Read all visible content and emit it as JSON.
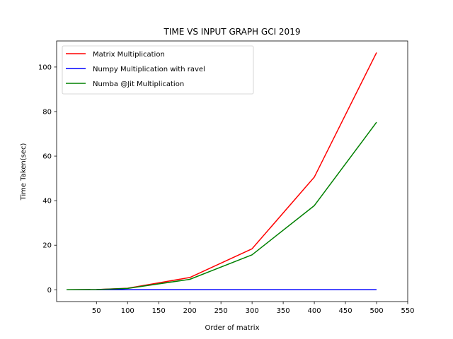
{
  "chart_data": {
    "type": "line",
    "title": "TIME VS INPUT GRAPH GCI 2019",
    "xlabel": "Order of matrix",
    "ylabel": "Time Taken(sec)",
    "xlim": [
      -14,
      550
    ],
    "ylim": [
      -5.3,
      111.7
    ],
    "xticks": [
      50,
      100,
      150,
      200,
      250,
      300,
      350,
      400,
      450,
      500,
      550
    ],
    "yticks": [
      0,
      20,
      40,
      60,
      80,
      100
    ],
    "x": [
      2,
      50,
      100,
      200,
      300,
      400,
      500
    ],
    "legend_position": "top-left",
    "series": [
      {
        "name": "Matrix Multiplication",
        "color": "#ff0000",
        "values": [
          0.0,
          0.1,
          0.7,
          5.5,
          18.4,
          50.6,
          106.5
        ]
      },
      {
        "name": "Numpy Multiplication with ravel",
        "color": "#0000ff",
        "values": [
          0.0,
          0.0,
          0.0,
          0.0,
          0.0,
          0.0,
          0.0
        ]
      },
      {
        "name": "Numba @Jit Multiplication",
        "color": "#008000",
        "values": [
          0.0,
          0.1,
          0.6,
          4.7,
          15.7,
          37.8,
          75.2
        ]
      }
    ]
  }
}
